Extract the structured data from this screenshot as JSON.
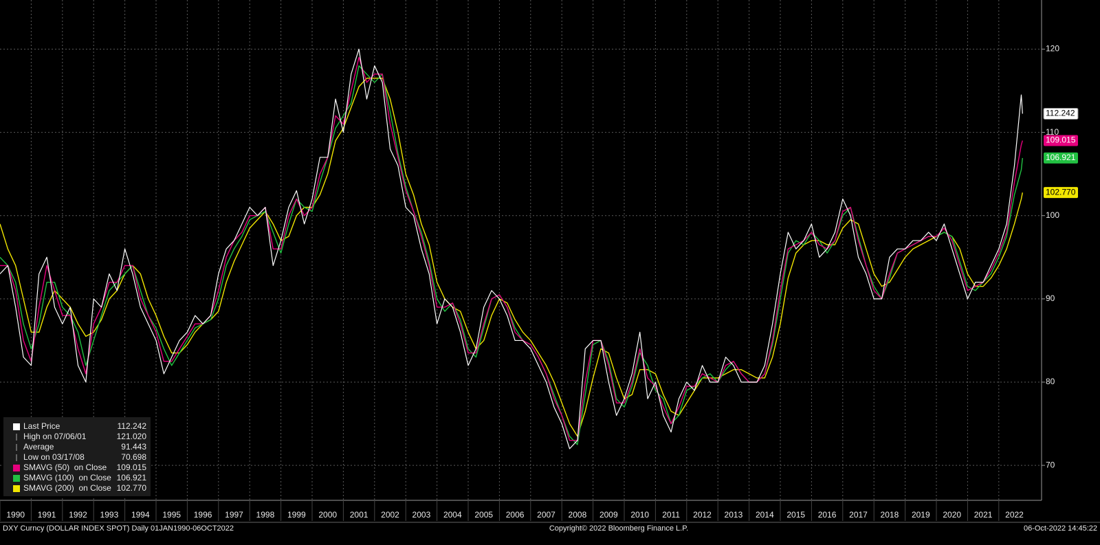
{
  "chart_data": {
    "type": "line",
    "x": [
      1990,
      1990.25,
      1990.5,
      1990.75,
      1991,
      1991.25,
      1991.5,
      1991.75,
      1992,
      1992.25,
      1992.5,
      1992.75,
      1993,
      1993.25,
      1993.5,
      1993.75,
      1994,
      1994.25,
      1994.5,
      1994.75,
      1995,
      1995.25,
      1995.5,
      1995.75,
      1996,
      1996.25,
      1996.5,
      1996.75,
      1997,
      1997.25,
      1997.5,
      1997.75,
      1998,
      1998.25,
      1998.5,
      1998.75,
      1999,
      1999.25,
      1999.5,
      1999.75,
      2000,
      2000.25,
      2000.5,
      2000.75,
      2001,
      2001.25,
      2001.5,
      2001.75,
      2002,
      2002.25,
      2002.5,
      2002.75,
      2003,
      2003.25,
      2003.5,
      2003.75,
      2004,
      2004.25,
      2004.5,
      2004.75,
      2005,
      2005.25,
      2005.5,
      2005.75,
      2006,
      2006.25,
      2006.5,
      2006.75,
      2007,
      2007.25,
      2007.5,
      2007.75,
      2008,
      2008.25,
      2008.5,
      2008.75,
      2009,
      2009.25,
      2009.5,
      2009.75,
      2010,
      2010.25,
      2010.5,
      2010.75,
      2011,
      2011.25,
      2011.5,
      2011.75,
      2012,
      2012.25,
      2012.5,
      2012.75,
      2013,
      2013.25,
      2013.5,
      2013.75,
      2014,
      2014.25,
      2014.5,
      2014.75,
      2015,
      2015.25,
      2015.5,
      2015.75,
      2016,
      2016.25,
      2016.5,
      2016.75,
      2017,
      2017.25,
      2017.5,
      2017.75,
      2018,
      2018.25,
      2018.5,
      2018.75,
      2019,
      2019.25,
      2019.5,
      2019.75,
      2020,
      2020.25,
      2020.5,
      2020.75,
      2021,
      2021.25,
      2021.5,
      2021.75,
      2022,
      2022.25,
      2022.5,
      2022.72,
      2022.76
    ],
    "series": [
      {
        "name": "Last Price",
        "color": "#ffffff",
        "last": {
          "value": 112.242,
          "label": "112.242"
        },
        "values": [
          93,
          94,
          89,
          83,
          82,
          93,
          95,
          89,
          87,
          89,
          82,
          80,
          90,
          89,
          93,
          91,
          96,
          93,
          89,
          87,
          85,
          81,
          83,
          85,
          86,
          88,
          87,
          88,
          93,
          96,
          97,
          99,
          101,
          100,
          101,
          94,
          97,
          101,
          103,
          99,
          102,
          107,
          107,
          114,
          110,
          117,
          120,
          114,
          118,
          116,
          108,
          106,
          101,
          100,
          96,
          93,
          87,
          90,
          89,
          86,
          82,
          84,
          89,
          91,
          90,
          88,
          85,
          85,
          84,
          82,
          80,
          77,
          75,
          72,
          73,
          84,
          85,
          85,
          80,
          76,
          78,
          81,
          86,
          78,
          80,
          76,
          74,
          78,
          80,
          79,
          82,
          80,
          80,
          83,
          82,
          80,
          80,
          80,
          82,
          87,
          93,
          98,
          96,
          97,
          99,
          95,
          96,
          98,
          102,
          100,
          95,
          93,
          90,
          90,
          95,
          96,
          96,
          97,
          97,
          98,
          97,
          99,
          96,
          93,
          90,
          92,
          92,
          94,
          96,
          99,
          106,
          114.5,
          112.242
        ]
      },
      {
        "name": "SMAVG (50)  on Close",
        "color": "#e6007e",
        "last": {
          "value": 109.015,
          "label": "109.015"
        },
        "values": [
          94,
          94,
          91,
          85,
          82.5,
          89,
          94,
          91,
          88,
          88,
          84,
          81,
          87,
          89,
          92,
          92,
          94,
          94,
          90,
          88,
          86,
          82.5,
          82.5,
          84,
          85.5,
          87,
          87,
          88,
          91,
          95,
          97,
          98,
          100,
          100,
          101,
          96,
          96,
          100,
          102,
          100,
          101,
          105,
          107,
          112,
          111,
          115,
          119,
          116,
          117,
          117,
          111,
          107,
          103,
          100.5,
          97.5,
          94,
          89,
          89,
          89.5,
          87,
          83.5,
          83.5,
          87,
          90,
          90.5,
          89,
          86,
          85,
          84.5,
          83,
          81,
          78,
          76,
          73,
          73,
          80,
          85,
          85,
          82,
          77.5,
          77.5,
          80,
          84,
          80.5,
          79.5,
          77,
          75,
          77,
          79.5,
          79.5,
          81,
          80.5,
          80,
          82,
          82.5,
          81,
          80,
          80,
          81,
          85,
          91,
          96,
          96.5,
          97,
          98,
          96.5,
          96,
          97,
          100.5,
          101,
          97,
          94,
          91,
          90,
          93,
          95.5,
          96,
          96.5,
          97,
          97.5,
          97.5,
          98.5,
          97,
          94,
          91,
          91.5,
          92,
          93.5,
          95.5,
          98,
          104,
          108.5,
          109.015
        ]
      },
      {
        "name": "SMAVG (100)  on Close",
        "color": "#22c042",
        "last": {
          "value": 106.921,
          "label": "106.921"
        },
        "values": [
          95,
          94,
          92,
          87,
          84,
          87,
          92,
          92,
          89,
          88,
          86,
          82,
          85,
          88,
          91,
          92,
          93,
          94,
          91,
          88,
          86.5,
          84,
          82,
          83.5,
          85,
          86.5,
          87,
          87.5,
          90,
          94,
          96,
          97.5,
          99.5,
          100,
          100.5,
          98,
          95.5,
          99,
          102,
          101,
          100.5,
          104,
          107,
          110.5,
          112,
          113.5,
          118,
          117,
          116,
          117,
          112.5,
          107.5,
          103.5,
          100.5,
          98,
          94.5,
          90,
          88.5,
          89.5,
          87.5,
          84,
          83,
          86.5,
          90,
          90.5,
          89,
          86.5,
          85,
          84.5,
          83,
          81,
          78.5,
          76,
          73.5,
          72.5,
          78.5,
          84.5,
          85,
          82.5,
          78,
          77,
          79.5,
          83.5,
          82,
          79,
          78,
          75,
          76,
          79,
          79.5,
          80.5,
          81,
          80,
          81.5,
          82.5,
          81,
          80,
          80,
          81,
          84.5,
          90,
          95.5,
          97,
          96.5,
          98,
          97,
          95.5,
          97,
          100,
          101,
          97.5,
          94,
          91.5,
          90,
          92.5,
          95.5,
          96,
          96.5,
          97,
          97.5,
          97.5,
          98,
          97.5,
          94.5,
          91.5,
          91,
          92,
          93,
          95,
          97.5,
          102.5,
          105.5,
          106.921
        ]
      },
      {
        "name": "SMAVG (200)  on Close",
        "color": "#f2e600",
        "last": {
          "value": 102.77,
          "label": "102.770"
        },
        "values": [
          99,
          96,
          94,
          90,
          86,
          86,
          89,
          91,
          90,
          89,
          87,
          85.5,
          86,
          87.5,
          90,
          91,
          93,
          94,
          93,
          90,
          88,
          85.5,
          83.5,
          83.5,
          84.5,
          86,
          87,
          87.5,
          88.5,
          92,
          94.5,
          96.5,
          98.5,
          99.5,
          100.5,
          99,
          97,
          97.5,
          100,
          101,
          101,
          102.5,
          105,
          109,
          110.5,
          113,
          115.5,
          116.5,
          116.5,
          116.5,
          114,
          110,
          105,
          102.5,
          99,
          96.5,
          92,
          90,
          89,
          88.5,
          86,
          84,
          85,
          88,
          90,
          89.5,
          87.5,
          86,
          85,
          83.5,
          82,
          80,
          77.5,
          75,
          73.5,
          76.5,
          80.5,
          84,
          83.5,
          80.5,
          78,
          78.5,
          81.5,
          81.5,
          81,
          78.5,
          76.5,
          76,
          77.5,
          79,
          80.5,
          80.5,
          80.5,
          81,
          81.5,
          81.5,
          81,
          80.5,
          80.5,
          83,
          87,
          92.5,
          95.5,
          96.5,
          97,
          97,
          96.5,
          96.5,
          98.5,
          99.5,
          99,
          96,
          93,
          91.5,
          92,
          93.5,
          95,
          96,
          96.5,
          97,
          97.5,
          98,
          97.5,
          96,
          93,
          91.5,
          91.5,
          92.5,
          94,
          96,
          99,
          102,
          102.77
        ]
      }
    ],
    "stats": [
      {
        "label": "High on 07/06/01",
        "value": {
          "value": 121.02,
          "label": "121.020"
        }
      },
      {
        "label": "Average",
        "value": 91.443
      },
      {
        "label": "Low on 03/17/08",
        "value": 70.698
      }
    ],
    "xlim": [
      1990,
      2023.37
    ],
    "xticks": [
      1990,
      1991,
      1992,
      1993,
      1994,
      1995,
      1996,
      1997,
      1998,
      1999,
      2000,
      2001,
      2002,
      2003,
      2004,
      2005,
      2006,
      2007,
      2008,
      2009,
      2010,
      2011,
      2012,
      2013,
      2014,
      2015,
      2016,
      2017,
      2018,
      2019,
      2020,
      2021,
      2022
    ],
    "ylim": [
      65.8,
      125.9
    ],
    "yticks": [
      70,
      80,
      90,
      100,
      110,
      120
    ],
    "grid": true,
    "legend": "lower-left",
    "footer": {
      "left": "DXY Curncy (DOLLAR INDEX SPOT)  Daily 01JAN1990-06OCT2022",
      "center": "Copyright© 2022 Bloomberg Finance L.P.",
      "right": "06-Oct-2022 14:45:22"
    }
  }
}
